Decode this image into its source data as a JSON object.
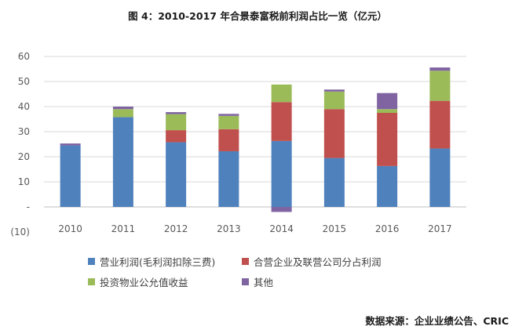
{
  "title": "图 4：2010-2017 年合景泰富税前利润占比一览（亿元）",
  "source": "数据来源：企业业绩公告、CRIC",
  "chart_data": {
    "type": "bar",
    "stacked": true,
    "categories": [
      "2010",
      "2011",
      "2012",
      "2013",
      "2014",
      "2015",
      "2016",
      "2017"
    ],
    "series": [
      {
        "name": "营业利润(毛利润扣除三费)",
        "color": "#4F81BD",
        "values": [
          24.5,
          35.8,
          25.8,
          22.2,
          26.3,
          19.5,
          16.3,
          23.3
        ]
      },
      {
        "name": "合营企业及联营公司分占利润",
        "color": "#C0504D",
        "values": [
          0,
          0,
          4.8,
          8.8,
          15.5,
          19.5,
          21.2,
          19.0
        ]
      },
      {
        "name": "投资物业公允值收益",
        "color": "#9BBB59",
        "values": [
          0,
          3.2,
          6.4,
          5.3,
          7.0,
          7.0,
          1.5,
          12.0
        ]
      },
      {
        "name": "其他",
        "color": "#8064A2",
        "values": [
          0.8,
          1.0,
          0.8,
          0.8,
          -2.0,
          0.8,
          6.4,
          1.3
        ]
      }
    ],
    "yticks": [
      "60",
      "50",
      "40",
      "30",
      "20",
      "10",
      "-",
      "(10)"
    ],
    "ylim": [
      -10,
      60
    ],
    "grid": true,
    "legend_position": "bottom"
  }
}
